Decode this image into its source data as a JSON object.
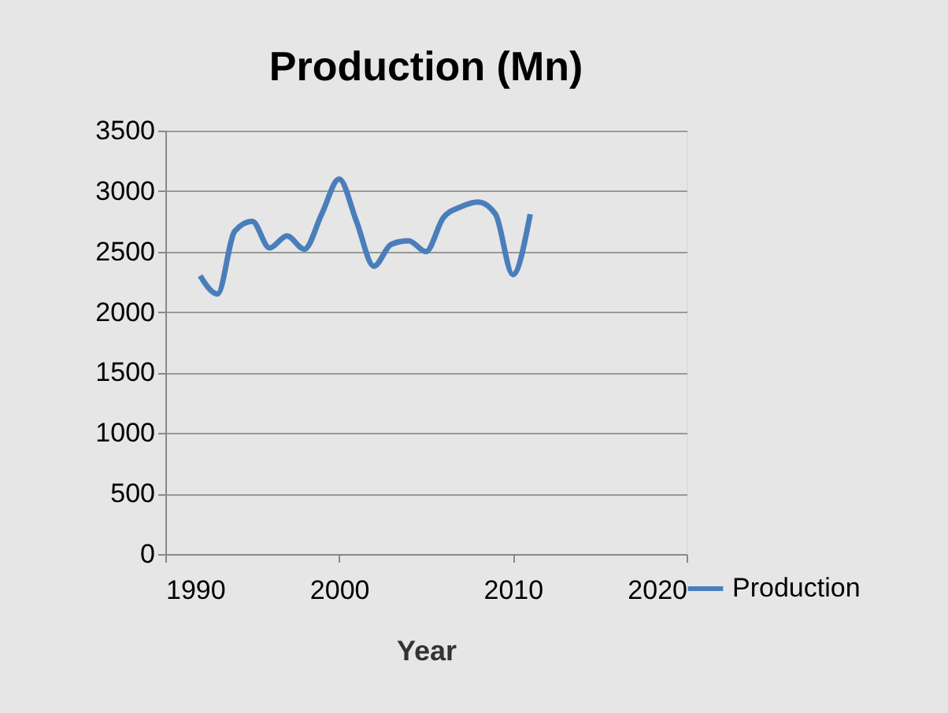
{
  "chart_data": {
    "type": "line",
    "title": "Production (Mn)",
    "xlabel": "Year",
    "x": [
      1992,
      1993,
      1994,
      1995,
      1996,
      1997,
      1998,
      1999,
      2000,
      2001,
      2002,
      2003,
      2004,
      2005,
      2006,
      2007,
      2008,
      2009,
      2010,
      2011
    ],
    "series": [
      {
        "name": "Production",
        "color": "#4a7ebb",
        "values": [
          2300,
          2150,
          2670,
          2750,
          2530,
          2630,
          2520,
          2810,
          3100,
          2750,
          2380,
          2560,
          2590,
          2500,
          2780,
          2870,
          2910,
          2810,
          2310,
          2810
        ]
      }
    ],
    "xlim": [
      1990,
      2020
    ],
    "xticks": [
      1990,
      2000,
      2010,
      2020
    ],
    "ylim": [
      0,
      3500
    ],
    "yticks": [
      0,
      500,
      1000,
      1500,
      2000,
      2500,
      3000,
      3500
    ],
    "grid": "y",
    "legend": "bottom right",
    "marker": "none",
    "line_style": "solid"
  }
}
